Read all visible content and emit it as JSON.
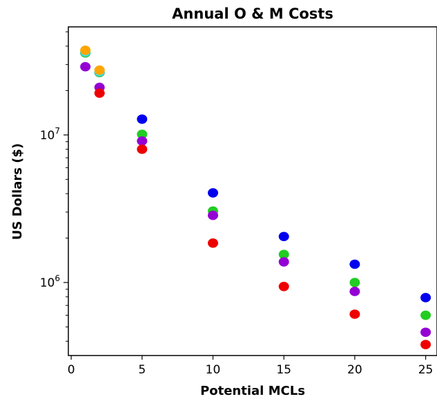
{
  "chart_data": {
    "type": "scatter",
    "title": "Annual O & M Costs",
    "xlabel": "Potential MCLs",
    "ylabel": "US Dollars ($)",
    "xlim": [
      -0.2,
      25.8
    ],
    "ylim": [
      320000,
      54000000
    ],
    "y_scale": "log",
    "x_ticks": [
      0,
      5,
      10,
      15,
      20,
      25
    ],
    "y_ticks": [
      {
        "value": 1000000,
        "base": "10",
        "exp": "6"
      },
      {
        "value": 10000000,
        "base": "10",
        "exp": "7"
      }
    ],
    "grid": false,
    "series": [
      {
        "color": "#0000ee",
        "x": [
          1,
          2,
          5,
          10,
          15,
          20,
          25
        ],
        "y": [
          36000000,
          26500000,
          12800000,
          4050000,
          2050000,
          1330000,
          790000
        ]
      },
      {
        "color": "#22cc22",
        "x": [
          1,
          2,
          5,
          10,
          15,
          20,
          25
        ],
        "y": [
          36000000,
          26500000,
          10100000,
          3050000,
          1550000,
          1000000,
          600000
        ]
      },
      {
        "color": "#9400d3",
        "x": [
          1,
          2,
          5,
          10,
          15,
          20,
          25
        ],
        "y": [
          29000000,
          21000000,
          9100000,
          2850000,
          1380000,
          870000,
          460000
        ]
      },
      {
        "color": "#ee0000",
        "x": [
          2,
          5,
          10,
          15,
          20,
          25
        ],
        "y": [
          19200000,
          8000000,
          1850000,
          940000,
          610000,
          380000
        ]
      },
      {
        "color": "#44dddd",
        "x": [
          1,
          2
        ],
        "y": [
          36500000,
          26800000
        ]
      },
      {
        "color": "#ffa500",
        "x": [
          1,
          2
        ],
        "y": [
          37500000,
          27500000
        ]
      }
    ]
  }
}
